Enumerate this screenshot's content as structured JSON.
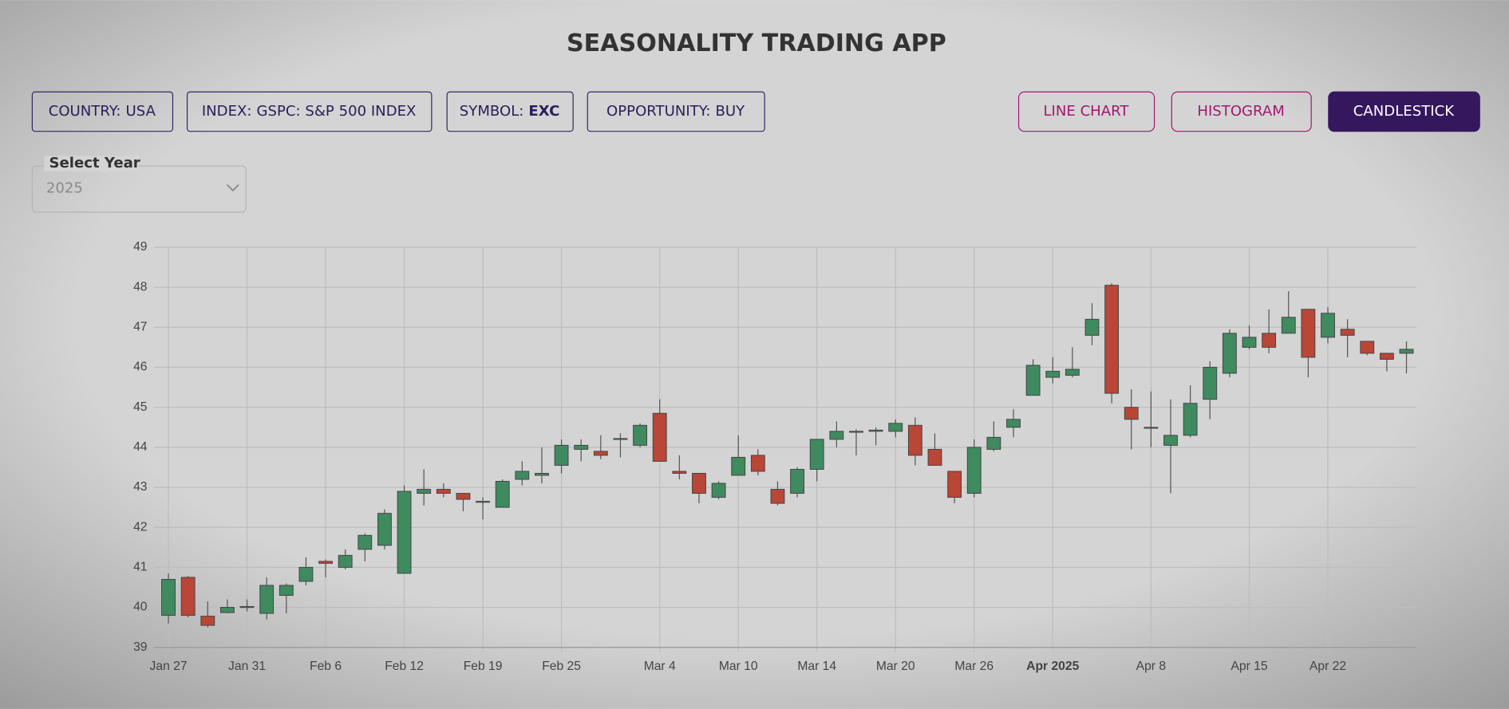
{
  "header": {
    "title": "SEASONALITY TRADING APP"
  },
  "filters": [
    {
      "label": "COUNTRY:",
      "value": "USA"
    },
    {
      "label": "INDEX:",
      "value": "GSPC: S&P 500 INDEX"
    },
    {
      "label": "SYMBOL:",
      "value": "EXC"
    },
    {
      "label": "OPPORTUNITY:",
      "value": "BUY"
    }
  ],
  "chart_buttons": [
    "LINE CHART",
    "HISTOGRAM",
    "CANDLESTICK"
  ],
  "active_button": 2,
  "year_select": {
    "label": "Select Year",
    "value": "2025"
  },
  "chart_data": {
    "type": "candlestick",
    "categories": [
      "Jan 27",
      null,
      null,
      null,
      "Jan 31",
      null,
      null,
      null,
      "Feb 6",
      null,
      null,
      null,
      "Feb 12",
      null,
      null,
      null,
      "Feb 19",
      null,
      null,
      null,
      "Feb 25",
      null,
      null,
      null,
      null,
      "Mar 4",
      null,
      null,
      null,
      "Mar 10",
      null,
      null,
      null,
      "Mar 14",
      null,
      null,
      null,
      "Mar 20",
      null,
      null,
      null,
      "Mar 26",
      null,
      null,
      null,
      "Apr 2025",
      null,
      null,
      null,
      null,
      "Apr 8",
      null,
      null,
      null,
      null,
      "Apr 15",
      null,
      null,
      null,
      "Apr 22",
      null,
      null,
      null,
      null
    ],
    "emphasized_ticks": [
      45
    ],
    "open": [
      39.8,
      40.75,
      39.78,
      39.87,
      40.0,
      39.85,
      40.3,
      40.65,
      41.15,
      41.0,
      41.45,
      41.55,
      40.85,
      42.85,
      42.95,
      42.85,
      42.65,
      42.5,
      43.2,
      43.3,
      43.55,
      43.95,
      43.9,
      44.2,
      44.05,
      44.85,
      43.4,
      43.35,
      42.75,
      43.3,
      43.8,
      42.95,
      42.85,
      43.45,
      44.2,
      44.4,
      44.4,
      44.4,
      44.55,
      43.95,
      43.4,
      42.85,
      43.95,
      44.5,
      45.3,
      45.75,
      45.8,
      46.8,
      48.05,
      45.0,
      44.5,
      44.05,
      44.3,
      45.2,
      45.85,
      46.5,
      46.85,
      46.85,
      47.45,
      46.75,
      46.95,
      46.65,
      46.35,
      46.35
    ],
    "high": [
      40.85,
      40.78,
      40.15,
      40.2,
      40.2,
      40.75,
      40.6,
      41.25,
      41.2,
      41.45,
      41.85,
      42.45,
      43.05,
      43.45,
      43.1,
      42.85,
      42.75,
      43.2,
      43.65,
      44.0,
      44.2,
      44.2,
      44.3,
      44.35,
      44.6,
      45.2,
      43.8,
      43.35,
      43.15,
      44.3,
      43.95,
      43.15,
      43.5,
      44.2,
      44.65,
      44.45,
      44.5,
      44.7,
      44.75,
      44.35,
      43.4,
      44.2,
      44.65,
      44.95,
      46.2,
      46.25,
      46.5,
      47.6,
      48.1,
      45.45,
      45.4,
      45.2,
      45.55,
      46.15,
      46.95,
      47.05,
      47.45,
      47.9,
      47.45,
      47.5,
      47.2,
      46.65,
      46.35,
      46.65
    ],
    "low": [
      39.6,
      39.75,
      39.5,
      39.85,
      39.9,
      39.7,
      39.85,
      40.55,
      40.75,
      40.95,
      41.15,
      41.45,
      40.85,
      42.55,
      42.75,
      42.4,
      42.2,
      42.5,
      43.05,
      43.1,
      43.35,
      43.65,
      43.7,
      43.75,
      44.0,
      43.65,
      43.2,
      42.6,
      42.7,
      43.3,
      43.3,
      42.55,
      42.75,
      43.15,
      44.0,
      43.8,
      44.05,
      44.25,
      43.55,
      43.55,
      42.6,
      42.75,
      43.9,
      44.25,
      45.3,
      45.6,
      45.75,
      46.55,
      45.1,
      43.95,
      44.0,
      42.85,
      44.25,
      44.7,
      45.75,
      46.45,
      46.35,
      46.85,
      45.75,
      46.6,
      46.25,
      46.3,
      45.9,
      45.85
    ],
    "close": [
      40.7,
      39.8,
      39.55,
      40.0,
      40.02,
      40.55,
      40.55,
      41.0,
      41.1,
      41.3,
      41.8,
      42.35,
      42.9,
      42.95,
      42.85,
      42.7,
      42.65,
      43.15,
      43.4,
      43.35,
      44.05,
      44.05,
      43.8,
      44.22,
      44.55,
      43.65,
      43.35,
      42.85,
      43.1,
      43.75,
      43.4,
      42.6,
      43.45,
      44.2,
      44.4,
      44.4,
      44.43,
      44.6,
      43.8,
      43.55,
      42.75,
      44.0,
      44.25,
      44.7,
      46.05,
      45.9,
      45.95,
      47.2,
      45.35,
      44.7,
      44.5,
      44.3,
      45.1,
      46.0,
      46.85,
      46.75,
      46.5,
      47.25,
      46.25,
      47.35,
      46.8,
      46.35,
      46.2,
      46.45
    ],
    "up_color": "#3f8a5f",
    "down_color": "#b94636",
    "ylim": [
      39,
      49
    ],
    "yticks": [
      39,
      40,
      41,
      42,
      43,
      44,
      45,
      46,
      47,
      48,
      49
    ],
    "grid": true
  }
}
